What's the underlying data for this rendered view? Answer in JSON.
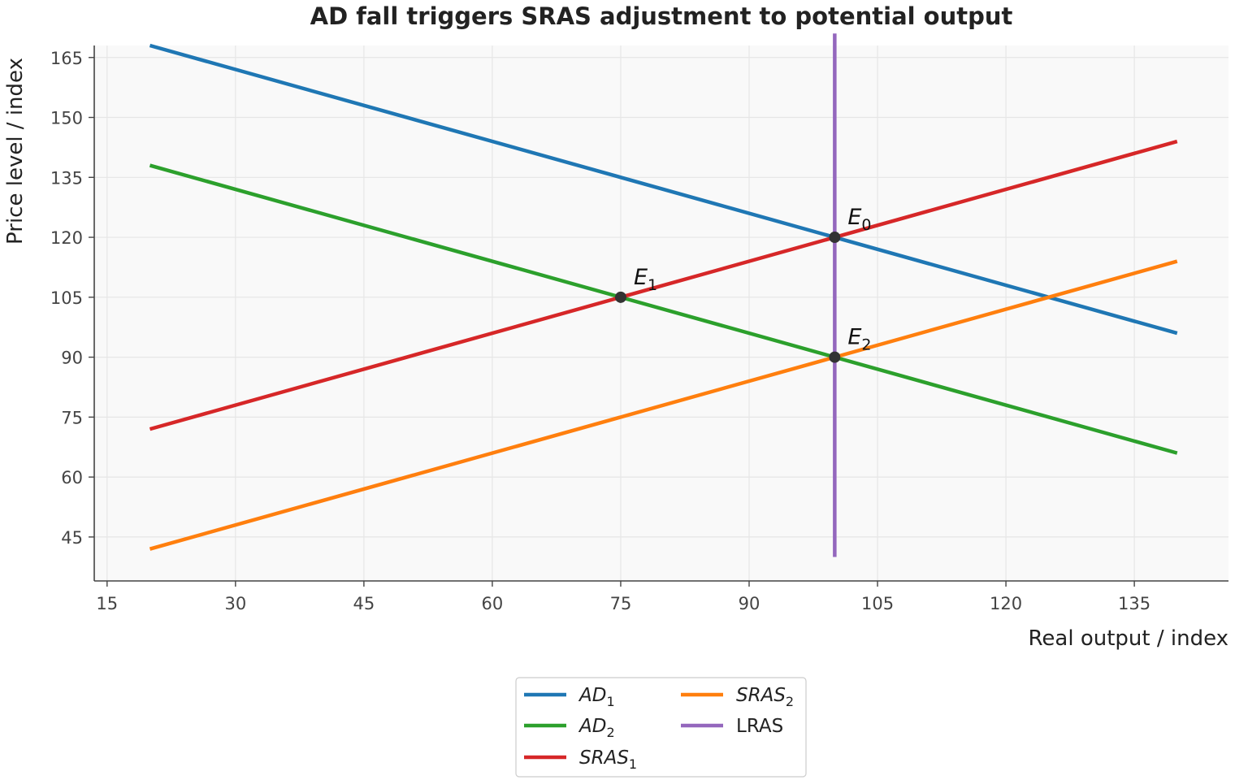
{
  "chart_data": {
    "type": "line",
    "title": "AD fall triggers SRAS adjustment to potential output",
    "xlabel": "Real output / index",
    "ylabel": "Price level / index",
    "xlim": [
      13.5,
      146
    ],
    "ylim": [
      34,
      168
    ],
    "xticks": [
      15,
      30,
      45,
      60,
      75,
      90,
      105,
      120,
      135
    ],
    "yticks": [
      45,
      60,
      75,
      90,
      105,
      120,
      135,
      150,
      165
    ],
    "grid": true,
    "legend_position": "bottom-center",
    "series": [
      {
        "key": "ad1",
        "name_main": "AD",
        "name_sub": "1",
        "italic": true,
        "color": "#1f77b4",
        "points": [
          [
            20,
            168
          ],
          [
            140,
            96
          ]
        ]
      },
      {
        "key": "ad2",
        "name_main": "AD",
        "name_sub": "2",
        "italic": true,
        "color": "#2ca02c",
        "points": [
          [
            20,
            138
          ],
          [
            140,
            66
          ]
        ]
      },
      {
        "key": "sras1",
        "name_main": "SRAS",
        "name_sub": "1",
        "italic": true,
        "color": "#d62728",
        "points": [
          [
            20,
            72
          ],
          [
            140,
            144
          ]
        ]
      },
      {
        "key": "sras2",
        "name_main": "SRAS",
        "name_sub": "2",
        "italic": true,
        "color": "#ff7f0e",
        "points": [
          [
            20,
            42
          ],
          [
            140,
            114
          ]
        ]
      },
      {
        "key": "lras",
        "name_main": "LRAS",
        "name_sub": "",
        "italic": false,
        "color": "#9467bd",
        "points": [
          [
            100,
            40
          ],
          [
            100,
            171
          ]
        ]
      }
    ],
    "equilibria": [
      {
        "label_main": "E",
        "label_sub": "0",
        "x": 100,
        "y": 120
      },
      {
        "label_main": "E",
        "label_sub": "1",
        "x": 75,
        "y": 105
      },
      {
        "label_main": "E",
        "label_sub": "2",
        "x": 100,
        "y": 90
      }
    ],
    "colors": {
      "background": "#f9f9f9",
      "grid": "#e6e6e6",
      "axis": "#444444",
      "point": "#333333"
    }
  }
}
